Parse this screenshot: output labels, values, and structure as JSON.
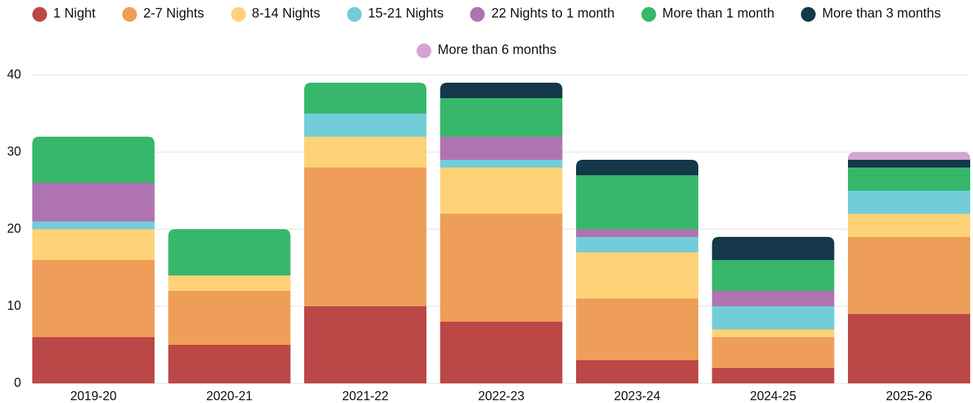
{
  "chart_data": {
    "type": "stacked_bar",
    "categories": [
      "2019-20",
      "2020-21",
      "2021-22",
      "2022-23",
      "2023-24",
      "2024-25",
      "2025-26"
    ],
    "series": [
      {
        "name": "1 Night",
        "color": "#bb4747",
        "values": [
          6,
          5,
          10,
          8,
          3,
          2,
          9
        ]
      },
      {
        "name": "2-7 Nights",
        "color": "#ee9e58",
        "values": [
          10,
          7,
          18,
          14,
          8,
          4,
          10
        ]
      },
      {
        "name": "8-14 Nights",
        "color": "#fed277",
        "values": [
          4,
          2,
          4,
          6,
          6,
          1,
          3
        ]
      },
      {
        "name": "15-21 Nights",
        "color": "#72cdd9",
        "values": [
          1,
          0,
          3,
          1,
          2,
          3,
          3
        ]
      },
      {
        "name": "22 Nights to 1 month",
        "color": "#b073b1",
        "values": [
          5,
          0,
          0,
          3,
          1,
          2,
          0
        ]
      },
      {
        "name": "More than 1 month",
        "color": "#36b76a",
        "values": [
          6,
          6,
          4,
          5,
          7,
          4,
          3
        ]
      },
      {
        "name": "More than 3 months",
        "color": "#14374a",
        "values": [
          0,
          0,
          0,
          2,
          2,
          3,
          1
        ]
      },
      {
        "name": "More than 6 months",
        "color": "#d3a5d2",
        "values": [
          0,
          0,
          0,
          0,
          0,
          0,
          1
        ]
      }
    ],
    "ylim": [
      0,
      40
    ],
    "yticks": [
      0,
      10,
      20,
      30,
      40
    ],
    "grid": true,
    "legend": "top"
  }
}
